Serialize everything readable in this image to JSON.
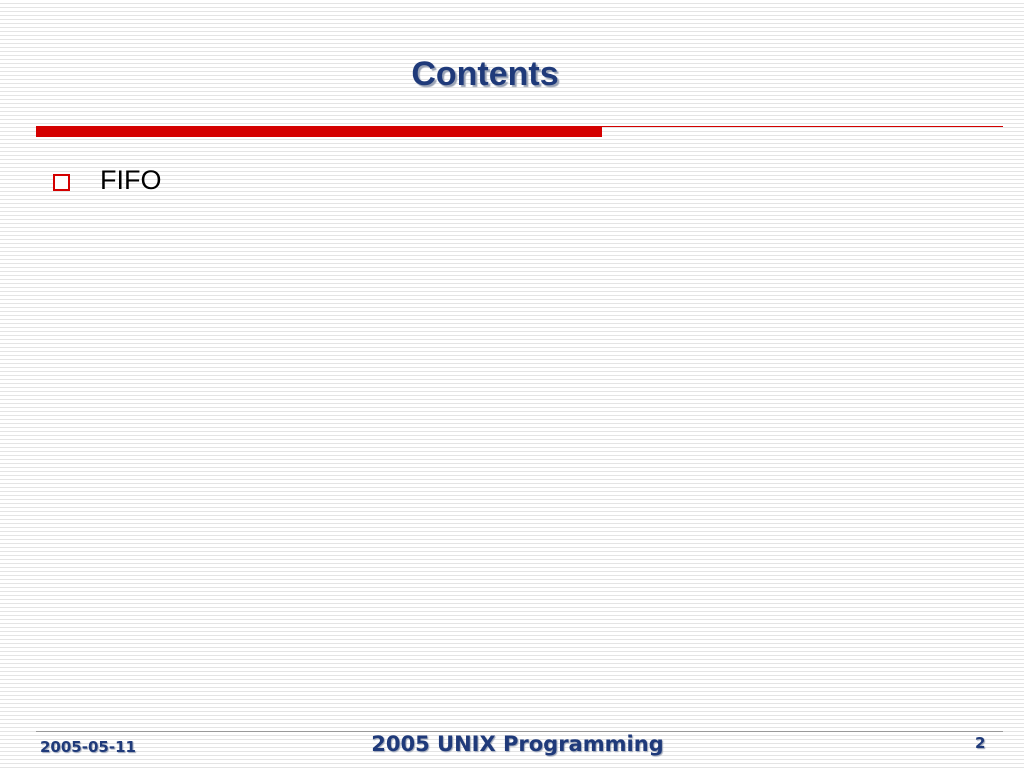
{
  "slide": {
    "title": "Contents",
    "bullets": [
      "FIFO"
    ],
    "footer": {
      "date": "2005-05-11",
      "center": "2005 UNIX Programming",
      "page": "2"
    }
  }
}
